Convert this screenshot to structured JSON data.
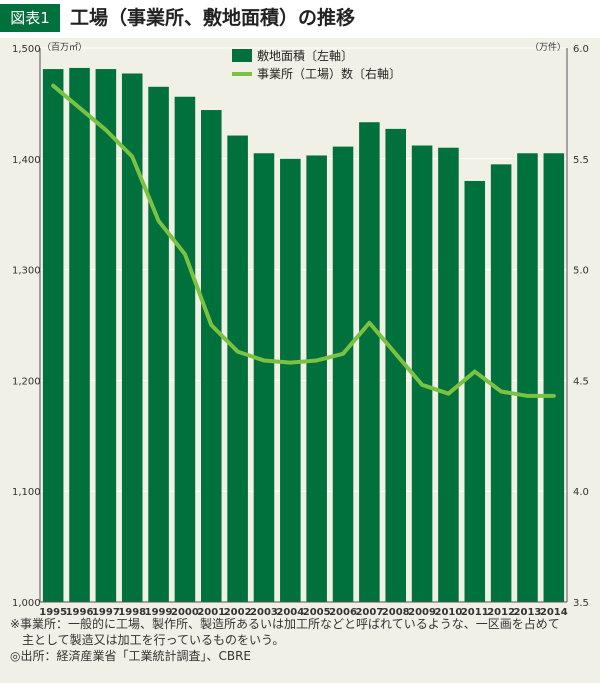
{
  "header": {
    "badge": "図表1",
    "title": "工場（事業所、敷地面積）の推移"
  },
  "chart_data": {
    "type": "bar",
    "categories": [
      "1995",
      "1996",
      "1997",
      "1998",
      "1999",
      "2000",
      "2001",
      "2002",
      "2003",
      "2004",
      "2005",
      "2006",
      "2007",
      "2008",
      "2009",
      "2010",
      "2011",
      "2012",
      "2013",
      "2014"
    ],
    "series": [
      {
        "name": "敷地面積〔左軸〕",
        "type": "bar",
        "axis": "left",
        "color": "#00703c",
        "values": [
          1481,
          1482,
          1481,
          1477,
          1465,
          1456,
          1444,
          1421,
          1405,
          1400,
          1403,
          1411,
          1433,
          1427,
          1412,
          1410,
          1380,
          1395,
          1405,
          1405
        ]
      },
      {
        "name": "事業所（工場）数〔右軸〕",
        "type": "line",
        "axis": "right",
        "color": "#7cc242",
        "values": [
          5.83,
          5.73,
          5.63,
          5.51,
          5.22,
          5.07,
          4.75,
          4.63,
          4.59,
          4.58,
          4.59,
          4.62,
          4.76,
          4.62,
          4.48,
          4.44,
          4.54,
          4.45,
          4.43,
          4.43
        ]
      }
    ],
    "y_left": {
      "min": 1000,
      "max": 1500,
      "ticks": [
        "1,000",
        "1,100",
        "1,200",
        "1,300",
        "1,400",
        "1,500"
      ],
      "unit": "（百万㎡）"
    },
    "y_right": {
      "min": 3.5,
      "max": 6.0,
      "ticks": [
        "3.5",
        "4.0",
        "4.5",
        "5.0",
        "5.5",
        "6.0"
      ],
      "unit": "（万件）"
    },
    "legend": [
      "敷地面積〔左軸〕",
      "事業所（工場）数〔右軸〕"
    ],
    "legend_position": "top-center",
    "grid": true
  },
  "notes": {
    "note_line1": "※事業所：一般的に工場、製作所、製造所あるいは加工所などと呼ばれているような、一区画を占めて",
    "note_line2": "主として製造又は加工を行っているものをいう。",
    "source": "◎出所：経済産業省「工業統計調査」、CBRE"
  }
}
